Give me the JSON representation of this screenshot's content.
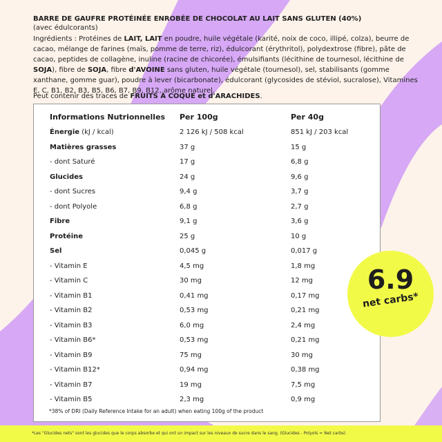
{
  "colors": {
    "background": "#fdf3ea",
    "purple": "#d6a8f5",
    "yellow": "#f2fa48"
  },
  "title": "BARRE DE GAUFRE PROTÉINÉE ENROBÉE DE CHOCOLAT AU LAIT SANS GLUTEN (40%)",
  "subtitle": "(avec édulcorants)",
  "ingredients": {
    "prefix": "Ingrédients : Protéines de ",
    "a1": "LAIT, LAIT",
    "t1": " en poudre, huile végétale (karité, noix de coco, illipé, colza), beurre de cacao, mélange de farines (maïs, pomme de terre, riz), édulcorant (érythritol), polydextrose (fibre), pâte de cacao, peptides de collagène, inuline (racine de chicorée), émulsifiants (lécithine de tournesol, lécithine de ",
    "a2": "SOJA",
    "t2": "), fibre de ",
    "a3": "SOJA",
    "t3": ", fibre ",
    "a4": "d'AVOINE",
    "t4": " sans gluten, huile végétale (tournesol), sel, stabilisants (gomme xanthane, gomme guar), poudre à lever (bicarbonate), édulcorant (glycosides de stéviol, sucralose), Vitamines E, C, B1, B2, B3, B5, B6, B7, B9, B12, arôme naturel."
  },
  "traces": {
    "prefix": "Peut contenir des traces de ",
    "allergens": "FRUITS À COQUE et d'ARACHIDES",
    "suffix": "."
  },
  "table": {
    "headers": [
      "Informations Nutrionnelles",
      "Per 100g",
      "Per 40g"
    ],
    "rows": [
      {
        "label": "Énergie",
        "unit": " (kJ / kcal)",
        "v100": "2 126 kJ / 508 kcal",
        "v40": "851 kJ / 203 kcal",
        "bold": true
      },
      {
        "label": "Matières grasses",
        "v100": "37 g",
        "v40": "15 g",
        "bold": true
      },
      {
        "label": "- dont Saturé",
        "v100": "17 g",
        "v40": "6,8 g"
      },
      {
        "label": "Glucides",
        "v100": "24 g",
        "v40": "9,6 g",
        "bold": true
      },
      {
        "label": "- dont Sucres",
        "v100": "9,4 g",
        "v40": "3,7 g"
      },
      {
        "label": "- dont Polyole",
        "v100": "6,8 g",
        "v40": "2,7 g"
      },
      {
        "label": "Fibre",
        "v100": "9,1 g",
        "v40": "3,6 g",
        "bold": true
      },
      {
        "label": "Protéine",
        "v100": "25 g",
        "v40": "10 g",
        "bold": true
      },
      {
        "label": "Sel",
        "v100": "0,045 g",
        "v40": "0,017 g",
        "bold": true
      },
      {
        "label": "- Vitamin E",
        "v100": "4,5 mg",
        "v40": "1,8 mg"
      },
      {
        "label": "- Vitamin C",
        "v100": "30 mg",
        "v40": "12 mg"
      },
      {
        "label": "- Vitamin B1",
        "v100": "0,41 mg",
        "v40": "0,17 mg"
      },
      {
        "label": "- Vitamin B2",
        "v100": "0,53 mg",
        "v40": "0,21 mg"
      },
      {
        "label": "- Vitamin B3",
        "v100": "6,0 mg",
        "v40": "2,4 mg"
      },
      {
        "label": "- Vitamin B6*",
        "v100": "0,53 mg",
        "v40": "0,21 mg"
      },
      {
        "label": "- Vitamin B9",
        "v100": "75 mg",
        "v40": "30 mg"
      },
      {
        "label": "- Vitamin B12*",
        "v100": "0,94 mg",
        "v40": "0,38 mg"
      },
      {
        "label": "- Vitamin B7",
        "v100": "19 mg",
        "v40": "7,5 mg"
      },
      {
        "label": "- Vitamin B5",
        "v100": "2,3 mg",
        "v40": "0,9 mg"
      }
    ],
    "footnote": "*38% of DRI (Daily Reference Intake for an adult) when eating 100g of the product"
  },
  "sticker": {
    "value": "6.9",
    "label": "net carbs*"
  },
  "bottom_note": "*Les \"Glucides nets\" sont les glucides que le corps absorbe et qui ont un impact sur les niveaux de sucre dans le sang. (Glucides - Polyols = Net carbs)"
}
